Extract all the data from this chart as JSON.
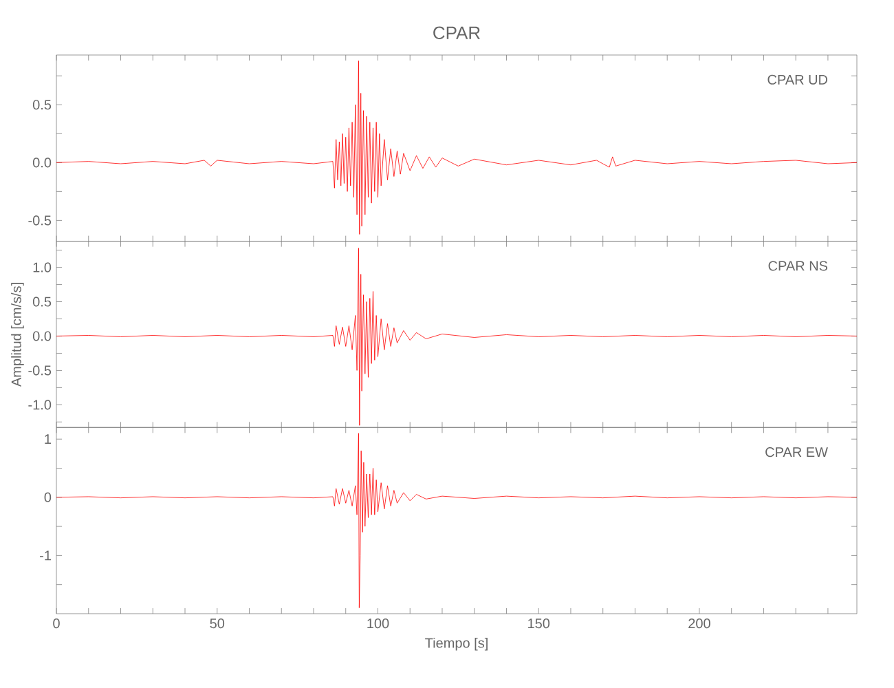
{
  "chart_data": [
    {
      "type": "line",
      "title": "CPAR",
      "annotations": [
        "CPAR UD"
      ],
      "tick_labels": "y",
      "xlim": [
        0,
        249
      ],
      "xticks": [
        0,
        {
          "value": 10,
          "label": null
        },
        {
          "value": 20,
          "label": null
        },
        {
          "value": 30,
          "label": null
        },
        {
          "value": 40,
          "label": null
        },
        50,
        {
          "value": 60,
          "label": null
        },
        {
          "value": 70,
          "label": null
        },
        {
          "value": 80,
          "label": null
        },
        {
          "value": 90,
          "label": null
        },
        100,
        {
          "value": 110,
          "label": null
        },
        {
          "value": 120,
          "label": null
        },
        {
          "value": 130,
          "label": null
        },
        {
          "value": 140,
          "label": null
        },
        150,
        {
          "value": 160,
          "label": null
        },
        {
          "value": 170,
          "label": null
        },
        {
          "value": 180,
          "label": null
        },
        {
          "value": 190,
          "label": null
        },
        200,
        {
          "value": 210,
          "label": null
        },
        {
          "value": 220,
          "label": null
        },
        {
          "value": 230,
          "label": null
        },
        {
          "value": 240,
          "label": null
        }
      ],
      "ylim": [
        -0.68,
        0.93
      ],
      "yticks": [
        {
          "value": -0.5,
          "label": "-0.5"
        },
        {
          "value": -0.25,
          "label": null
        },
        {
          "value": 0,
          "label": "0.0"
        },
        {
          "value": 0.25,
          "label": null
        },
        {
          "value": 0.5,
          "label": "0.5"
        },
        {
          "value": 0.75,
          "label": null
        }
      ],
      "x": [
        0,
        10,
        20,
        30,
        40,
        46,
        48,
        50,
        60,
        70,
        80,
        86,
        86.5,
        87,
        87.5,
        88,
        88.5,
        89,
        89.5,
        90,
        90.5,
        91,
        91.5,
        92,
        92.5,
        93,
        93.5,
        94,
        94.3,
        94.7,
        95,
        95.5,
        96,
        96.5,
        97,
        97.5,
        98,
        98.5,
        99,
        99.5,
        100,
        100.5,
        101,
        102,
        103,
        104,
        105,
        106,
        107,
        108,
        110,
        112,
        114,
        116,
        118,
        120,
        125,
        130,
        140,
        150,
        160,
        168,
        172,
        173,
        174,
        180,
        190,
        200,
        210,
        220,
        230,
        240,
        249
      ],
      "series": [
        {
          "color": "#ff0000",
          "values": [
            0,
            0.01,
            -0.01,
            0.01,
            -0.01,
            0.02,
            -0.03,
            0.02,
            -0.01,
            0.01,
            -0.01,
            0.01,
            -0.22,
            0.2,
            -0.15,
            0.18,
            -0.2,
            0.25,
            -0.18,
            0.22,
            -0.25,
            0.3,
            -0.2,
            0.35,
            -0.3,
            0.5,
            -0.45,
            0.88,
            -0.62,
            0.6,
            -0.55,
            0.45,
            -0.45,
            0.4,
            -0.3,
            0.35,
            -0.35,
            0.3,
            -0.25,
            0.35,
            -0.3,
            0.25,
            -0.2,
            0.2,
            -0.15,
            0.12,
            -0.12,
            0.1,
            -0.1,
            0.08,
            -0.07,
            0.06,
            -0.05,
            0.05,
            -0.04,
            0.04,
            -0.03,
            0.03,
            -0.02,
            0.02,
            -0.02,
            0.02,
            -0.04,
            0.05,
            -0.03,
            0.02,
            -0.01,
            0.01,
            -0.01,
            0.01,
            0.02,
            -0.01,
            0
          ]
        }
      ]
    },
    {
      "type": "line",
      "ylabel": "Amplitud [cm/s/s]",
      "annotations": [
        "CPAR NS"
      ],
      "tick_labels": "y",
      "xlim": [
        0,
        249
      ],
      "xticks": [
        0,
        {
          "value": 10,
          "label": null
        },
        {
          "value": 20,
          "label": null
        },
        {
          "value": 30,
          "label": null
        },
        {
          "value": 40,
          "label": null
        },
        50,
        {
          "value": 60,
          "label": null
        },
        {
          "value": 70,
          "label": null
        },
        {
          "value": 80,
          "label": null
        },
        {
          "value": 90,
          "label": null
        },
        100,
        {
          "value": 110,
          "label": null
        },
        {
          "value": 120,
          "label": null
        },
        {
          "value": 130,
          "label": null
        },
        {
          "value": 140,
          "label": null
        },
        150,
        {
          "value": 160,
          "label": null
        },
        {
          "value": 170,
          "label": null
        },
        {
          "value": 180,
          "label": null
        },
        {
          "value": 190,
          "label": null
        },
        200,
        {
          "value": 210,
          "label": null
        },
        {
          "value": 220,
          "label": null
        },
        {
          "value": 230,
          "label": null
        },
        {
          "value": 240,
          "label": null
        }
      ],
      "ylim": [
        -1.33,
        1.38
      ],
      "yticks": [
        {
          "value": -1.25,
          "label": null
        },
        {
          "value": -1,
          "label": "-1.0"
        },
        {
          "value": -0.75,
          "label": null
        },
        {
          "value": -0.5,
          "label": "-0.5"
        },
        {
          "value": -0.25,
          "label": null
        },
        {
          "value": 0,
          "label": "0.0"
        },
        {
          "value": 0.25,
          "label": null
        },
        {
          "value": 0.5,
          "label": "0.5"
        },
        {
          "value": 0.75,
          "label": null
        },
        {
          "value": 1,
          "label": "1.0"
        },
        {
          "value": 1.25,
          "label": null
        }
      ],
      "x": [
        0,
        10,
        20,
        30,
        40,
        50,
        60,
        70,
        80,
        86,
        86.5,
        87,
        88,
        89,
        90,
        91,
        92,
        93,
        93.5,
        94,
        94.3,
        94.7,
        95,
        95.5,
        96,
        96.5,
        97,
        97.5,
        98,
        98.5,
        99,
        99.5,
        100,
        101,
        102,
        103,
        104,
        105,
        106,
        108,
        110,
        112,
        115,
        120,
        130,
        140,
        150,
        160,
        170,
        180,
        190,
        200,
        210,
        220,
        230,
        240,
        249
      ],
      "series": [
        {
          "color": "#ff0000",
          "values": [
            0,
            0.01,
            -0.01,
            0.01,
            -0.01,
            0.01,
            -0.01,
            0.01,
            -0.01,
            0.01,
            -0.15,
            0.15,
            -0.12,
            0.13,
            -0.15,
            0.15,
            -0.2,
            0.3,
            -0.5,
            1.28,
            -1.3,
            0.9,
            -0.8,
            0.6,
            -0.55,
            0.5,
            -0.6,
            0.55,
            -0.4,
            0.65,
            -0.35,
            0.3,
            -0.3,
            0.25,
            -0.2,
            0.18,
            -0.15,
            0.12,
            -0.1,
            0.08,
            -0.06,
            0.05,
            -0.04,
            0.03,
            -0.02,
            0.02,
            -0.01,
            0.01,
            -0.01,
            0.01,
            -0.01,
            0.01,
            -0.01,
            0.01,
            -0.01,
            0.01,
            0
          ]
        }
      ]
    },
    {
      "type": "line",
      "xlabel": "Tiempo [s]",
      "annotations": [
        "CPAR EW"
      ],
      "xlim": [
        0,
        249
      ],
      "xticks": [
        0,
        {
          "value": 10,
          "label": null
        },
        {
          "value": 20,
          "label": null
        },
        {
          "value": 30,
          "label": null
        },
        {
          "value": 40,
          "label": null
        },
        50,
        {
          "value": 60,
          "label": null
        },
        {
          "value": 70,
          "label": null
        },
        {
          "value": 80,
          "label": null
        },
        {
          "value": 90,
          "label": null
        },
        100,
        {
          "value": 110,
          "label": null
        },
        {
          "value": 120,
          "label": null
        },
        {
          "value": 130,
          "label": null
        },
        {
          "value": 140,
          "label": null
        },
        150,
        {
          "value": 160,
          "label": null
        },
        {
          "value": 170,
          "label": null
        },
        {
          "value": 180,
          "label": null
        },
        {
          "value": 190,
          "label": null
        },
        200,
        {
          "value": 210,
          "label": null
        },
        {
          "value": 220,
          "label": null
        },
        {
          "value": 230,
          "label": null
        },
        {
          "value": 240,
          "label": null
        }
      ],
      "ylim": [
        -2.0,
        1.2
      ],
      "yticks": [
        {
          "value": -1.5,
          "label": null
        },
        -1,
        {
          "value": -0.5,
          "label": null
        },
        0,
        {
          "value": 0.5,
          "label": null
        },
        1
      ],
      "x": [
        0,
        10,
        20,
        30,
        40,
        50,
        60,
        70,
        80,
        86,
        86.5,
        87,
        88,
        89,
        90,
        91,
        92,
        93,
        93.5,
        94,
        94.2,
        94.5,
        94.8,
        95.2,
        95.6,
        96,
        96.5,
        97,
        97.5,
        98,
        98.5,
        99,
        99.5,
        100,
        101,
        102,
        103,
        104,
        105,
        106,
        108,
        110,
        112,
        115,
        120,
        130,
        140,
        150,
        160,
        170,
        180,
        190,
        200,
        210,
        220,
        230,
        240,
        249
      ],
      "series": [
        {
          "color": "#ff0000",
          "values": [
            0,
            0.01,
            -0.01,
            0.01,
            -0.01,
            0.01,
            -0.01,
            0.01,
            -0.01,
            0.01,
            -0.15,
            0.15,
            -0.12,
            0.15,
            -0.1,
            0.12,
            -0.15,
            0.2,
            -0.3,
            1.1,
            -1.9,
            -1.0,
            0.8,
            -0.6,
            0.6,
            -0.5,
            0.4,
            -0.35,
            0.4,
            -0.3,
            0.5,
            -0.3,
            0.3,
            -0.25,
            0.25,
            -0.2,
            0.2,
            -0.15,
            0.12,
            -0.1,
            0.08,
            -0.06,
            0.05,
            -0.03,
            0.02,
            -0.02,
            0.02,
            -0.01,
            0.01,
            -0.01,
            0.02,
            -0.01,
            0.01,
            -0.01,
            0.01,
            -0.01,
            0.01,
            0
          ]
        }
      ]
    }
  ]
}
